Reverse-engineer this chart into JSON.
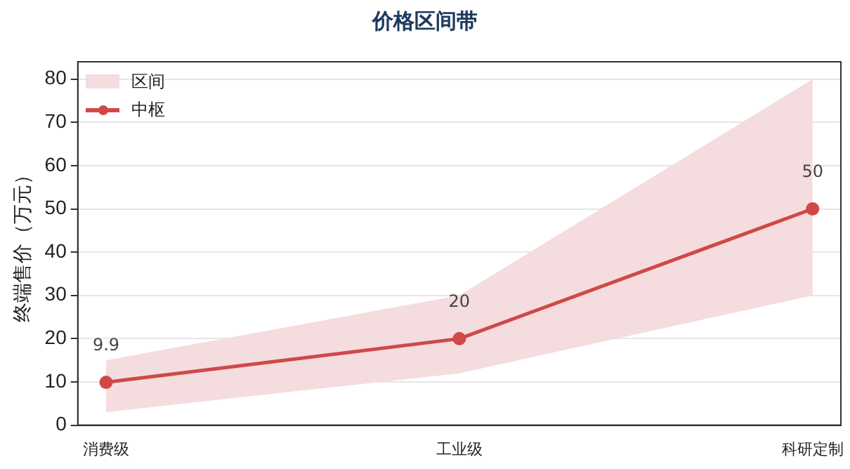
{
  "chart_data": {
    "type": "line",
    "title": "价格区间带",
    "ylabel": "终端售价（万元）",
    "categories": [
      "消费级",
      "工业级",
      "科研定制"
    ],
    "series": [
      {
        "name": "区间",
        "type": "area",
        "color": "#f5dcde",
        "values": [
          null,
          null,
          null
        ],
        "lower": [
          3,
          12,
          30
        ],
        "upper": [
          15,
          30,
          80
        ]
      },
      {
        "name": "中枢",
        "type": "line",
        "color": "#d04848",
        "values": [
          9.9,
          20,
          50
        ],
        "marker": "circle",
        "value_labels": [
          "9.9",
          "20",
          "50"
        ]
      }
    ],
    "ylim": [
      0,
      84
    ],
    "yticks": [
      0,
      10,
      20,
      30,
      40,
      50,
      60,
      70,
      80
    ],
    "grid": "y",
    "legend": "top left",
    "line_style": "solid"
  }
}
